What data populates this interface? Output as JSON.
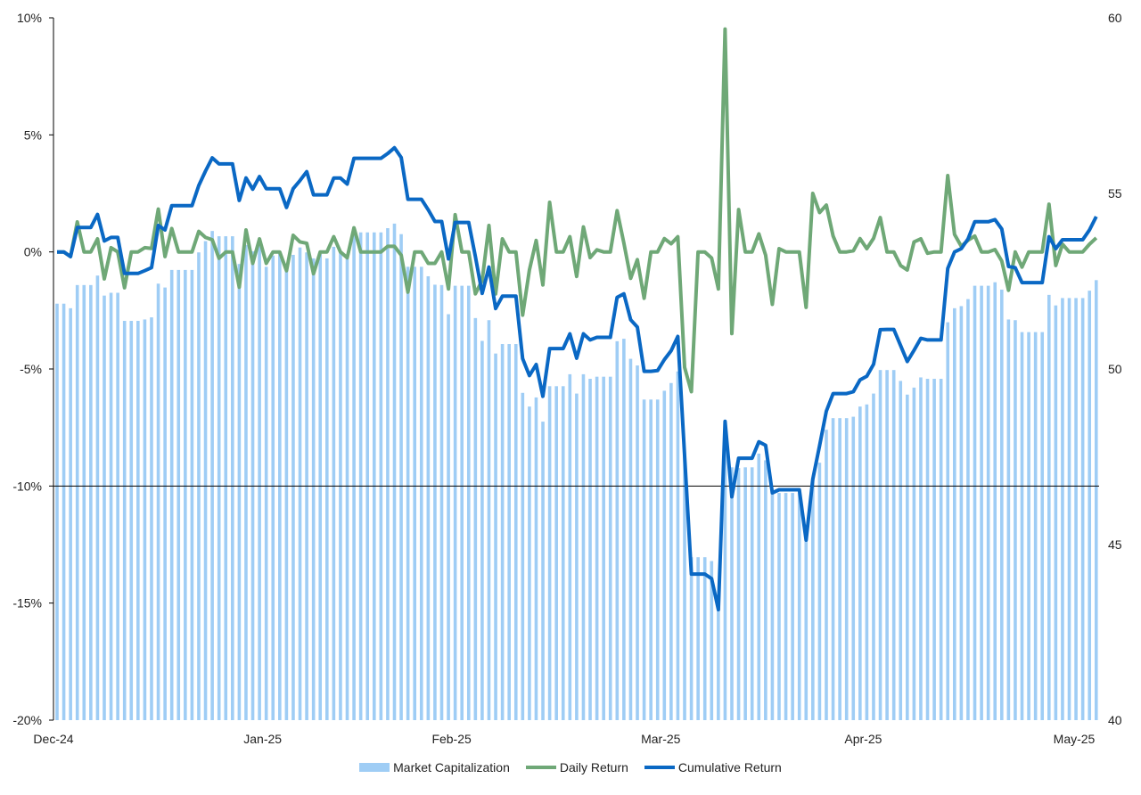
{
  "chart_data": {
    "type": "bar+line",
    "title": "",
    "x_ticks": [
      {
        "label": "Dec-24",
        "at": 0
      },
      {
        "label": "Jan-25",
        "at": 31
      },
      {
        "label": "Feb-25",
        "at": 59
      },
      {
        "label": "Mar-25",
        "at": 90
      },
      {
        "label": "Apr-25",
        "at": 120
      },
      {
        "label": "May-25",
        "at": 151
      }
    ],
    "y_left": {
      "ylim": [
        -20,
        10
      ],
      "ticks": [
        "10%",
        "5%",
        "0%",
        "-5%",
        "-10%",
        "-15%",
        "-20%"
      ],
      "tick_values": [
        10,
        5,
        0,
        -5,
        -10,
        -15,
        -20
      ]
    },
    "y_right": {
      "ylim": [
        40,
        60
      ],
      "ticks": [
        "60",
        "55",
        "50",
        "45",
        "40"
      ],
      "tick_values": [
        60,
        55,
        50,
        45,
        40
      ]
    },
    "reference_line": -10,
    "grid": false,
    "legend_position": "bottom",
    "series": [
      {
        "name": "Market Capitalization",
        "type": "bar",
        "axis": "right",
        "color": "#9fcdf5",
        "values": [
          51.86,
          51.86,
          51.73,
          52.39,
          52.39,
          52.39,
          52.66,
          52.09,
          52.17,
          52.17,
          51.37,
          51.37,
          51.37,
          51.41,
          51.47,
          52.43,
          52.32,
          52.82,
          52.82,
          52.82,
          52.82,
          53.32,
          53.64,
          53.93,
          53.78,
          53.78,
          53.78,
          52.99,
          53.53,
          53.35,
          53.6,
          52.91,
          53.23,
          53.32,
          52.81,
          53.25,
          53.46,
          53.32,
          53.15,
          53.27,
          53.15,
          53.48,
          53.36,
          53.15,
          54.04,
          53.89,
          53.89,
          53.89,
          53.89,
          54.01,
          54.14,
          53.84,
          52.91,
          52.91,
          52.91,
          52.64,
          52.4,
          52.39,
          51.56,
          52.37,
          52.37,
          52.37,
          51.45,
          50.8,
          51.39,
          50.44,
          50.71,
          50.71,
          50.71,
          49.32,
          48.93,
          49.19,
          48.5,
          49.51,
          49.51,
          49.51,
          49.85,
          49.3,
          49.85,
          49.72,
          49.78,
          49.78,
          49.78,
          50.79,
          50.86,
          50.29,
          50.1,
          49.13,
          49.13,
          49.13,
          49.38,
          49.6,
          49.93,
          47.5,
          44.64,
          44.64,
          44.64,
          44.53,
          43.3,
          48.0,
          47.2,
          47.18,
          47.2,
          47.2,
          47.59,
          47.4,
          46.47,
          46.47,
          46.47,
          46.47,
          46.47,
          45.1,
          46.85,
          47.33,
          48.27,
          48.6,
          48.6,
          48.6,
          48.64,
          48.93,
          48.99,
          49.3,
          49.97,
          49.97,
          49.97,
          49.66,
          49.27,
          49.47,
          49.76,
          49.72,
          49.72,
          49.72,
          51.33,
          51.73,
          51.79,
          51.99,
          52.37,
          52.37,
          52.37,
          52.47,
          52.26,
          51.41,
          51.39,
          51.05,
          51.05,
          51.05,
          51.05,
          52.11,
          51.81,
          52.02,
          52.02,
          52.02,
          52.02,
          52.23,
          52.53
        ]
      },
      {
        "name": "Daily Return",
        "type": "line",
        "axis": "left",
        "color": "#6fa877",
        "values": [
          0,
          0,
          -0.2,
          1.28,
          0,
          0,
          0.56,
          -1.15,
          0.18,
          0,
          -1.53,
          0,
          0,
          0.18,
          0.15,
          1.83,
          -0.2,
          1.0,
          0,
          0,
          0,
          0.88,
          0.62,
          0.52,
          -0.27,
          0,
          0,
          -1.51,
          0.94,
          -0.49,
          0.56,
          -0.49,
          0,
          0,
          -0.8,
          0.71,
          0.43,
          0.37,
          -0.93,
          0,
          0,
          0.65,
          0,
          -0.25,
          1.03,
          0,
          0,
          0,
          0,
          0.24,
          0.24,
          -0.14,
          -1.72,
          0,
          0,
          -0.49,
          -0.49,
          0,
          -1.58,
          1.59,
          0,
          0,
          -1.79,
          -1.22,
          1.13,
          -1.79,
          0.56,
          0,
          0,
          -2.7,
          -0.77,
          0.49,
          -1.41,
          2.12,
          0,
          0,
          0.65,
          -1.05,
          1.07,
          -0.24,
          0.09,
          0,
          0,
          1.76,
          0.37,
          -1.13,
          -0.33,
          -1.98,
          0,
          0,
          0.57,
          0.35,
          0.65,
          -4.93,
          -5.97,
          0,
          0,
          -0.26,
          -1.58,
          9.52,
          -3.49,
          1.81,
          0,
          0,
          0.77,
          -0.14,
          -2.24,
          0.14,
          0,
          0,
          0,
          -2.37,
          2.5,
          1.68,
          2.0,
          0.68,
          0,
          0,
          0.05,
          0.57,
          0.14,
          0.58,
          1.47,
          0,
          0,
          -0.58,
          -0.77,
          0.43,
          0.56,
          -0.06,
          0,
          0,
          3.26,
          0.75,
          0.24,
          0.5,
          0.68,
          0,
          0,
          0.1,
          -0.39,
          -1.64,
          0,
          -0.65,
          0,
          0,
          0,
          2.04,
          -0.58,
          0.33,
          0,
          0,
          0,
          0.33,
          0.6
        ]
      },
      {
        "name": "Cumulative Return",
        "type": "line",
        "axis": "left",
        "color": "#0a68c4",
        "values": [
          0,
          0,
          -0.2,
          1.04,
          1.04,
          1.04,
          1.6,
          0.47,
          0.62,
          0.62,
          -0.92,
          -0.92,
          -0.92,
          -0.8,
          -0.67,
          1.13,
          0.94,
          1.98,
          1.98,
          1.98,
          1.98,
          2.84,
          3.45,
          4.02,
          3.76,
          3.76,
          3.76,
          2.2,
          3.16,
          2.68,
          3.22,
          2.7,
          2.7,
          2.7,
          1.9,
          2.7,
          3.05,
          3.43,
          2.44,
          2.44,
          2.44,
          3.16,
          3.16,
          2.9,
          4.0,
          4.0,
          4.0,
          4.0,
          4.0,
          4.2,
          4.45,
          4.03,
          2.25,
          2.25,
          2.25,
          1.8,
          1.3,
          1.3,
          -0.3,
          1.26,
          1.26,
          1.26,
          -0.2,
          -1.77,
          -0.65,
          -2.42,
          -1.89,
          -1.89,
          -1.89,
          -4.56,
          -5.28,
          -4.81,
          -6.17,
          -4.13,
          -4.13,
          -4.13,
          -3.5,
          -4.54,
          -3.5,
          -3.76,
          -3.65,
          -3.65,
          -3.65,
          -1.94,
          -1.79,
          -2.9,
          -3.21,
          -5.1,
          -5.1,
          -5.07,
          -4.6,
          -4.22,
          -3.61,
          -8.7,
          -13.76,
          -13.76,
          -13.76,
          -13.96,
          -15.28,
          -7.24,
          -10.46,
          -8.81,
          -8.81,
          -8.81,
          -8.11,
          -8.26,
          -10.29,
          -10.16,
          -10.16,
          -10.16,
          -10.16,
          -12.31,
          -9.71,
          -8.28,
          -6.8,
          -6.05,
          -6.05,
          -6.05,
          -5.97,
          -5.47,
          -5.31,
          -4.8,
          -3.32,
          -3.31,
          -3.31,
          -4.0,
          -4.68,
          -4.2,
          -3.69,
          -3.76,
          -3.76,
          -3.76,
          -0.71,
          0,
          0.14,
          0.56,
          1.29,
          1.29,
          1.29,
          1.38,
          0.98,
          -0.62,
          -0.67,
          -1.31,
          -1.31,
          -1.31,
          -1.31,
          0.65,
          0.14,
          0.52,
          0.52,
          0.52,
          0.52,
          0.94,
          1.51
        ]
      }
    ]
  }
}
